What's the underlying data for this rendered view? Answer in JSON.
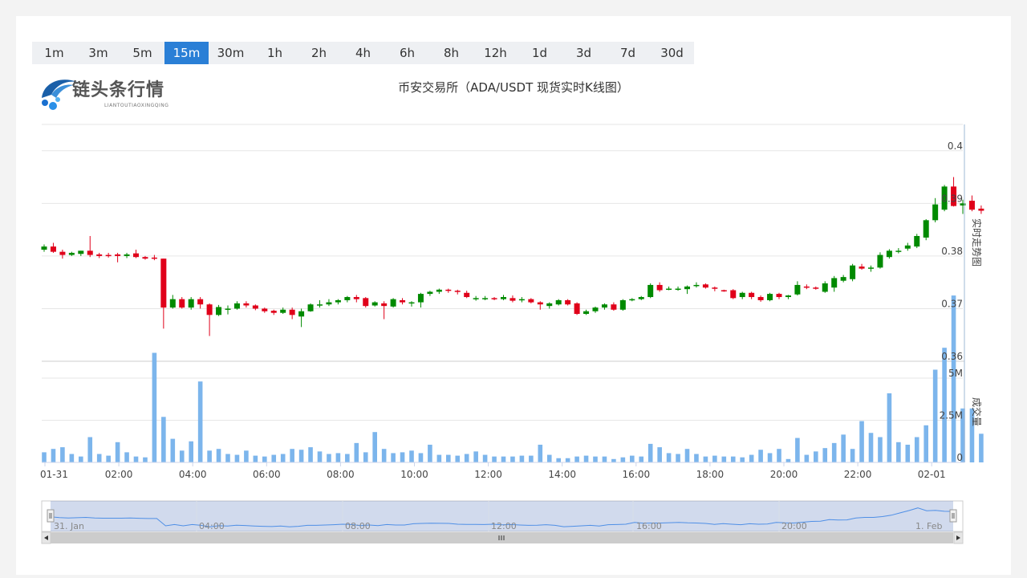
{
  "tabs": [
    {
      "label": "1m",
      "active": false
    },
    {
      "label": "3m",
      "active": false
    },
    {
      "label": "5m",
      "active": false
    },
    {
      "label": "15m",
      "active": true
    },
    {
      "label": "30m",
      "active": false
    },
    {
      "label": "1h",
      "active": false
    },
    {
      "label": "2h",
      "active": false
    },
    {
      "label": "4h",
      "active": false
    },
    {
      "label": "6h",
      "active": false
    },
    {
      "label": "8h",
      "active": false
    },
    {
      "label": "12h",
      "active": false
    },
    {
      "label": "1d",
      "active": false
    },
    {
      "label": "3d",
      "active": false
    },
    {
      "label": "7d",
      "active": false
    },
    {
      "label": "30d",
      "active": false
    }
  ],
  "logo": {
    "name": "链头条行情",
    "sub": "LIANTOUTIAOXINGQING"
  },
  "colors": {
    "up": "#008a00",
    "down": "#e0001a",
    "volume": "#7cb5ec",
    "accent": "#2a7fd6"
  },
  "chart_data": {
    "type": "candlestick",
    "title": "币安交易所（ADA/USDT 现货实时K线图）",
    "price_axis": {
      "label": "实时走势图",
      "ticks": [
        "0.4",
        "0.39",
        "0.38",
        "0.37",
        "0.36"
      ],
      "range": [
        0.36,
        0.405
      ]
    },
    "volume_axis": {
      "label": "成交量",
      "ticks": [
        "5M",
        "2.5M",
        "0"
      ],
      "range": [
        0,
        6000000
      ]
    },
    "x_ticks": [
      "01-31",
      "02:00",
      "04:00",
      "06:00",
      "08:00",
      "10:00",
      "12:00",
      "14:00",
      "16:00",
      "18:00",
      "20:00",
      "22:00",
      "02-01"
    ],
    "navigator_labels": [
      "31. Jan",
      "04:00",
      "08:00",
      "12:00",
      "16:00",
      "20:00",
      "1. Feb"
    ],
    "candles": [
      [
        0.3812,
        0.3818,
        0.3822,
        0.3808
      ],
      [
        0.3818,
        0.3808,
        0.3825,
        0.3806
      ],
      [
        0.3808,
        0.3802,
        0.3812,
        0.3795
      ],
      [
        0.3802,
        0.3806,
        0.3808,
        0.38
      ],
      [
        0.3804,
        0.381,
        0.381,
        0.38
      ],
      [
        0.381,
        0.3802,
        0.3838,
        0.3798
      ],
      [
        0.3803,
        0.38,
        0.3806,
        0.3796
      ],
      [
        0.3802,
        0.38,
        0.3806,
        0.3797
      ],
      [
        0.3803,
        0.38,
        0.3806,
        0.3788
      ],
      [
        0.38,
        0.3803,
        0.3806,
        0.3796
      ],
      [
        0.3805,
        0.3798,
        0.3812,
        0.3796
      ],
      [
        0.3798,
        0.3795,
        0.38,
        0.3793
      ],
      [
        0.3797,
        0.3795,
        0.3802,
        0.3792
      ],
      [
        0.3795,
        0.3702,
        0.3795,
        0.3662
      ],
      [
        0.3702,
        0.3718,
        0.3726,
        0.37
      ],
      [
        0.3718,
        0.3702,
        0.3722,
        0.37
      ],
      [
        0.3702,
        0.3718,
        0.3722,
        0.3698
      ],
      [
        0.3718,
        0.3708,
        0.3722,
        0.37
      ],
      [
        0.3708,
        0.3688,
        0.371,
        0.3648
      ],
      [
        0.3688,
        0.3703,
        0.3707,
        0.3686
      ],
      [
        0.37,
        0.37,
        0.3706,
        0.3689
      ],
      [
        0.37,
        0.371,
        0.3714,
        0.3698
      ],
      [
        0.371,
        0.3706,
        0.3714,
        0.3702
      ],
      [
        0.3706,
        0.37,
        0.3708,
        0.3697
      ],
      [
        0.37,
        0.3695,
        0.3702,
        0.3692
      ],
      [
        0.3696,
        0.3692,
        0.3698,
        0.3688
      ],
      [
        0.3692,
        0.3698,
        0.3702,
        0.369
      ],
      [
        0.3698,
        0.3688,
        0.3702,
        0.368
      ],
      [
        0.3685,
        0.3695,
        0.37,
        0.3665
      ],
      [
        0.3695,
        0.3708,
        0.371,
        0.3694
      ],
      [
        0.3708,
        0.3708,
        0.3716,
        0.3702
      ],
      [
        0.3708,
        0.3712,
        0.3718,
        0.3705
      ],
      [
        0.3712,
        0.3716,
        0.3718,
        0.3708
      ],
      [
        0.3716,
        0.3722,
        0.3724,
        0.3712
      ],
      [
        0.3722,
        0.3718,
        0.3726,
        0.3712
      ],
      [
        0.372,
        0.3705,
        0.3722,
        0.3702
      ],
      [
        0.3706,
        0.3712,
        0.3714,
        0.3704
      ],
      [
        0.371,
        0.3705,
        0.3714,
        0.368
      ],
      [
        0.3704,
        0.3718,
        0.372,
        0.3702
      ],
      [
        0.3716,
        0.3712,
        0.372,
        0.3708
      ],
      [
        0.371,
        0.3712,
        0.3714,
        0.3704
      ],
      [
        0.3712,
        0.3728,
        0.373,
        0.3702
      ],
      [
        0.3728,
        0.3732,
        0.3734,
        0.3724
      ],
      [
        0.3732,
        0.3736,
        0.3738,
        0.3728
      ],
      [
        0.3736,
        0.3734,
        0.3738,
        0.373
      ],
      [
        0.3734,
        0.3732,
        0.3736,
        0.3727
      ],
      [
        0.373,
        0.3722,
        0.3734,
        0.372
      ],
      [
        0.372,
        0.372,
        0.3724,
        0.3715
      ],
      [
        0.372,
        0.372,
        0.3724,
        0.3716
      ],
      [
        0.372,
        0.3718,
        0.3722,
        0.3716
      ],
      [
        0.3718,
        0.3722,
        0.3726,
        0.3716
      ],
      [
        0.372,
        0.3715,
        0.3725,
        0.3712
      ],
      [
        0.3717,
        0.3718,
        0.3722,
        0.3712
      ],
      [
        0.3718,
        0.3712,
        0.372,
        0.371
      ],
      [
        0.3712,
        0.3708,
        0.3714,
        0.3698
      ],
      [
        0.3705,
        0.371,
        0.3712,
        0.37
      ],
      [
        0.3708,
        0.3716,
        0.3718,
        0.3706
      ],
      [
        0.3716,
        0.3708,
        0.3718,
        0.3706
      ],
      [
        0.371,
        0.369,
        0.3712,
        0.3688
      ],
      [
        0.369,
        0.3695,
        0.3698,
        0.3688
      ],
      [
        0.3695,
        0.3702,
        0.3704,
        0.3692
      ],
      [
        0.3702,
        0.3708,
        0.371,
        0.3698
      ],
      [
        0.3708,
        0.3698,
        0.3712,
        0.3696
      ],
      [
        0.3698,
        0.3716,
        0.3718,
        0.3696
      ],
      [
        0.3716,
        0.3718,
        0.372,
        0.3714
      ],
      [
        0.3718,
        0.3722,
        0.3724,
        0.3716
      ],
      [
        0.3722,
        0.3745,
        0.3748,
        0.372
      ],
      [
        0.3745,
        0.3735,
        0.375,
        0.3732
      ],
      [
        0.3738,
        0.3738,
        0.3742,
        0.3735
      ],
      [
        0.3738,
        0.3738,
        0.3742,
        0.3734
      ],
      [
        0.3737,
        0.3742,
        0.3744,
        0.3728
      ],
      [
        0.3744,
        0.3745,
        0.375,
        0.374
      ],
      [
        0.3746,
        0.374,
        0.3748,
        0.3738
      ],
      [
        0.374,
        0.3738,
        0.3742,
        0.3733
      ],
      [
        0.3735,
        0.3733,
        0.3736,
        0.3732
      ],
      [
        0.3735,
        0.372,
        0.3737,
        0.3718
      ],
      [
        0.3722,
        0.373,
        0.3732,
        0.3718
      ],
      [
        0.373,
        0.3722,
        0.3732,
        0.3718
      ],
      [
        0.3722,
        0.3716,
        0.3725,
        0.3713
      ],
      [
        0.3716,
        0.3728,
        0.373,
        0.3714
      ],
      [
        0.3728,
        0.3722,
        0.373,
        0.3718
      ],
      [
        0.3722,
        0.3725,
        0.3726,
        0.3718
      ],
      [
        0.3727,
        0.3745,
        0.3752,
        0.3725
      ],
      [
        0.3742,
        0.374,
        0.3746,
        0.3737
      ],
      [
        0.374,
        0.3738,
        0.3742,
        0.3736
      ],
      [
        0.3732,
        0.3748,
        0.3752,
        0.373
      ],
      [
        0.374,
        0.3758,
        0.3762,
        0.3732
      ],
      [
        0.3753,
        0.376,
        0.3764,
        0.375
      ],
      [
        0.3756,
        0.3782,
        0.3785,
        0.3752
      ],
      [
        0.378,
        0.3776,
        0.3785,
        0.3774
      ],
      [
        0.3776,
        0.3778,
        0.3782,
        0.377
      ],
      [
        0.3778,
        0.3802,
        0.3807,
        0.3776
      ],
      [
        0.3798,
        0.381,
        0.3813,
        0.3795
      ],
      [
        0.381,
        0.381,
        0.3815,
        0.3805
      ],
      [
        0.3814,
        0.382,
        0.3825,
        0.381
      ],
      [
        0.3818,
        0.3838,
        0.3842,
        0.3815
      ],
      [
        0.3835,
        0.3868,
        0.387,
        0.383
      ],
      [
        0.3868,
        0.3898,
        0.391,
        0.3864
      ],
      [
        0.3888,
        0.3932,
        0.3935,
        0.3885
      ],
      [
        0.3932,
        0.3895,
        0.395,
        0.3894
      ],
      [
        0.3896,
        0.39,
        0.3907,
        0.388
      ],
      [
        0.3905,
        0.3888,
        0.3915,
        0.3885
      ],
      [
        0.389,
        0.3886,
        0.3896,
        0.388
      ]
    ],
    "volumes": [
      600000,
      800000,
      900000,
      500000,
      350000,
      1500000,
      500000,
      400000,
      1200000,
      600000,
      350000,
      300000,
      6500000,
      2700000,
      1400000,
      700000,
      1250000,
      4800000,
      700000,
      800000,
      500000,
      450000,
      700000,
      400000,
      350000,
      450000,
      500000,
      800000,
      750000,
      900000,
      650000,
      500000,
      550000,
      500000,
      1150000,
      600000,
      1800000,
      800000,
      550000,
      600000,
      700000,
      550000,
      1050000,
      450000,
      450000,
      400000,
      500000,
      650000,
      450000,
      350000,
      350000,
      350000,
      400000,
      400000,
      1050000,
      450000,
      250000,
      250000,
      350000,
      400000,
      350000,
      350000,
      200000,
      300000,
      400000,
      350000,
      1100000,
      900000,
      550000,
      500000,
      800000,
      500000,
      350000,
      400000,
      350000,
      350000,
      300000,
      450000,
      750000,
      550000,
      800000,
      200000,
      1450000,
      450000,
      650000,
      850000,
      1150000,
      1650000,
      800000,
      2450000,
      1750000,
      1500000,
      4100000,
      1200000,
      1050000,
      1500000,
      2200000,
      5500000,
      6800000,
      9900000,
      3200000,
      3200000,
      1700000
    ]
  }
}
